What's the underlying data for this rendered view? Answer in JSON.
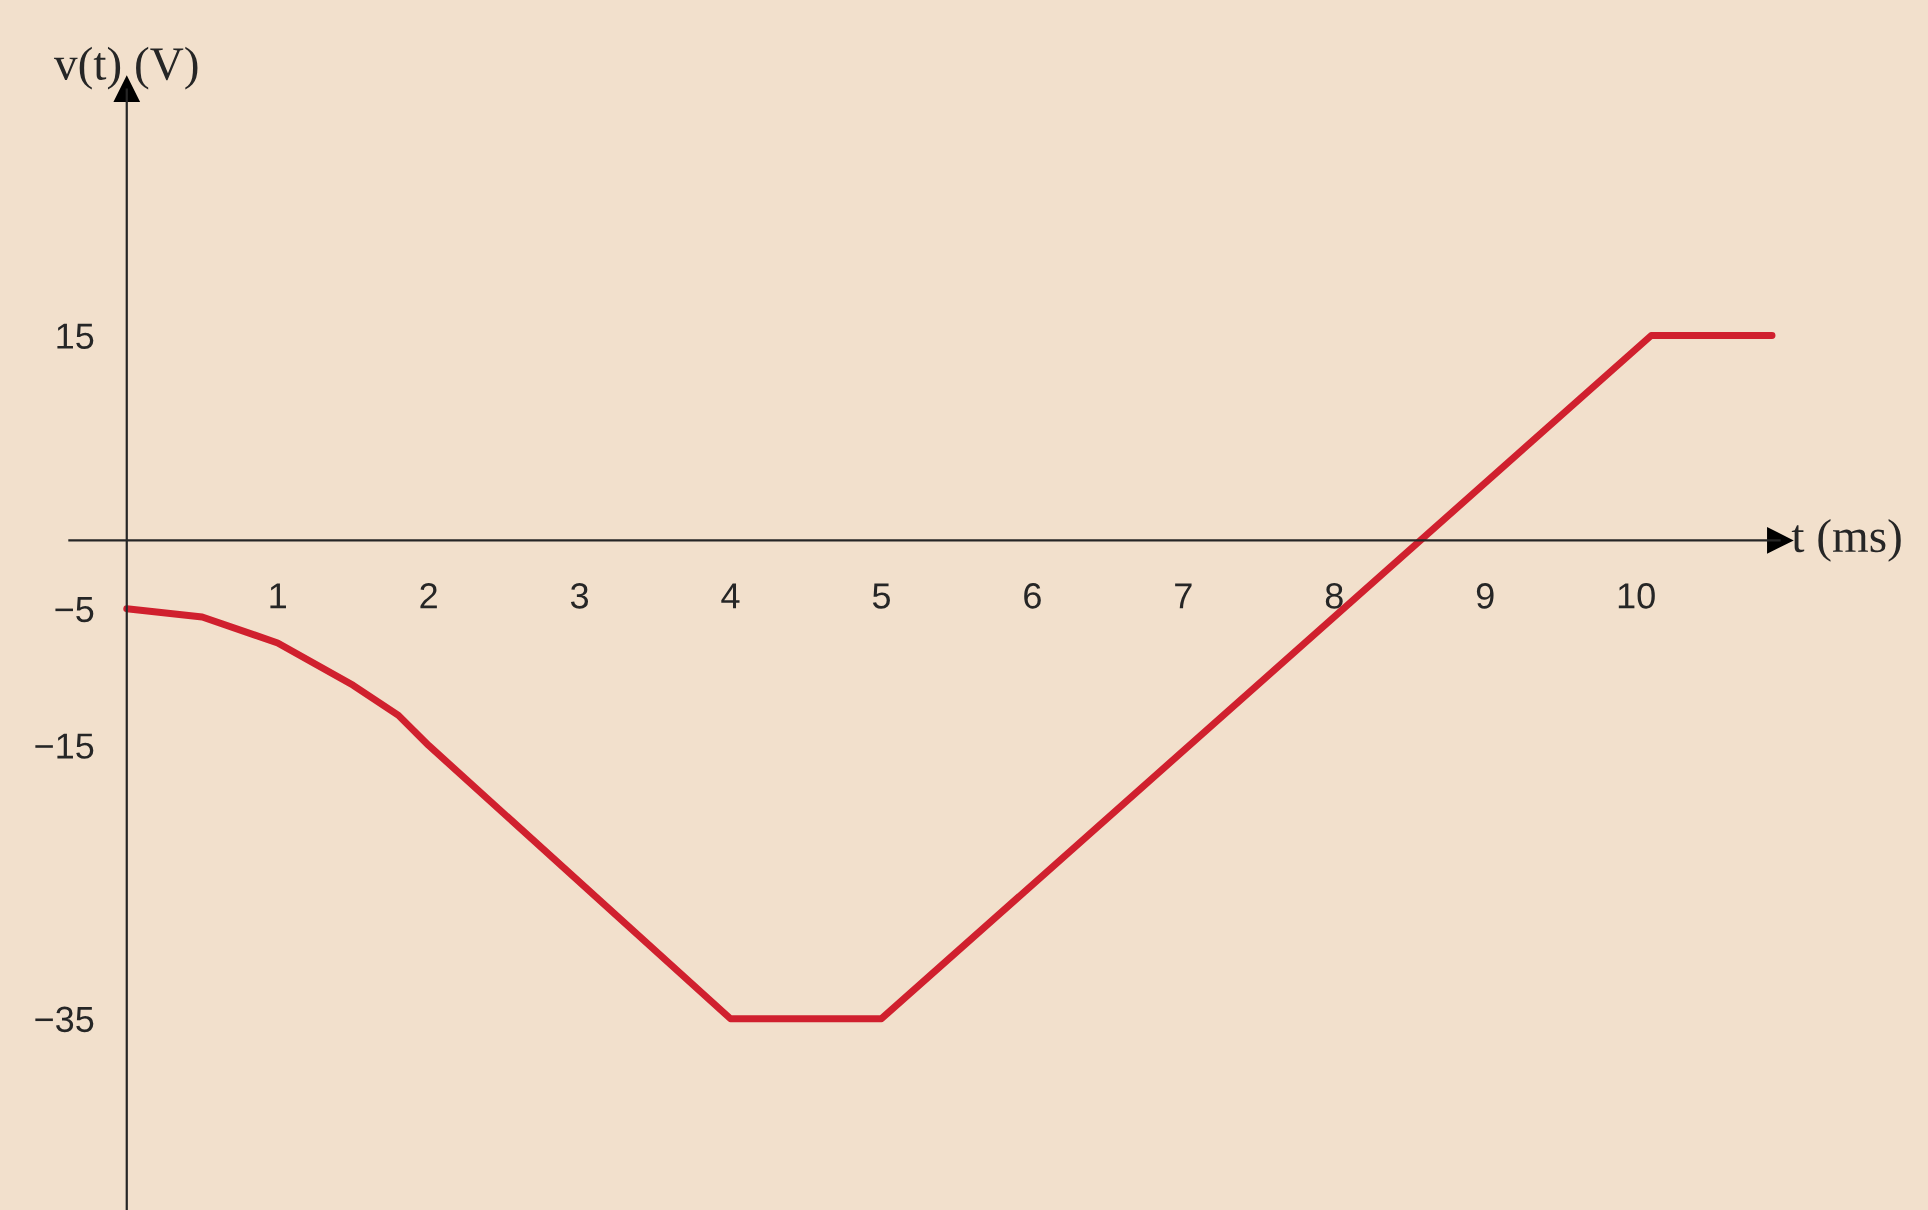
{
  "chart_data": {
    "type": "line",
    "xlabel": "t (ms)",
    "ylabel": "v(t) (V)",
    "series": [
      {
        "color": "#d0202e",
        "x": [
          0,
          0.5,
          1,
          1.5,
          1.8,
          2,
          4,
          5,
          10.1,
          10.9
        ],
        "values": [
          -5,
          -5.6,
          -7.5,
          -10.6,
          -12.8,
          -15,
          -35,
          -35,
          15,
          15
        ]
      }
    ],
    "xlim": [
      -0.38,
      10.95
    ],
    "ylim": [
      -49,
      33
    ],
    "xticks": [
      1,
      2,
      3,
      4,
      5,
      6,
      7,
      8,
      9,
      10
    ],
    "yticks": [
      15,
      {
        "value": -5,
        "label": "−5"
      },
      {
        "value": -15,
        "label": "−15"
      },
      {
        "value": -35,
        "label": "−35"
      }
    ],
    "grid": false,
    "marker": "none",
    "line_style": "solid"
  }
}
